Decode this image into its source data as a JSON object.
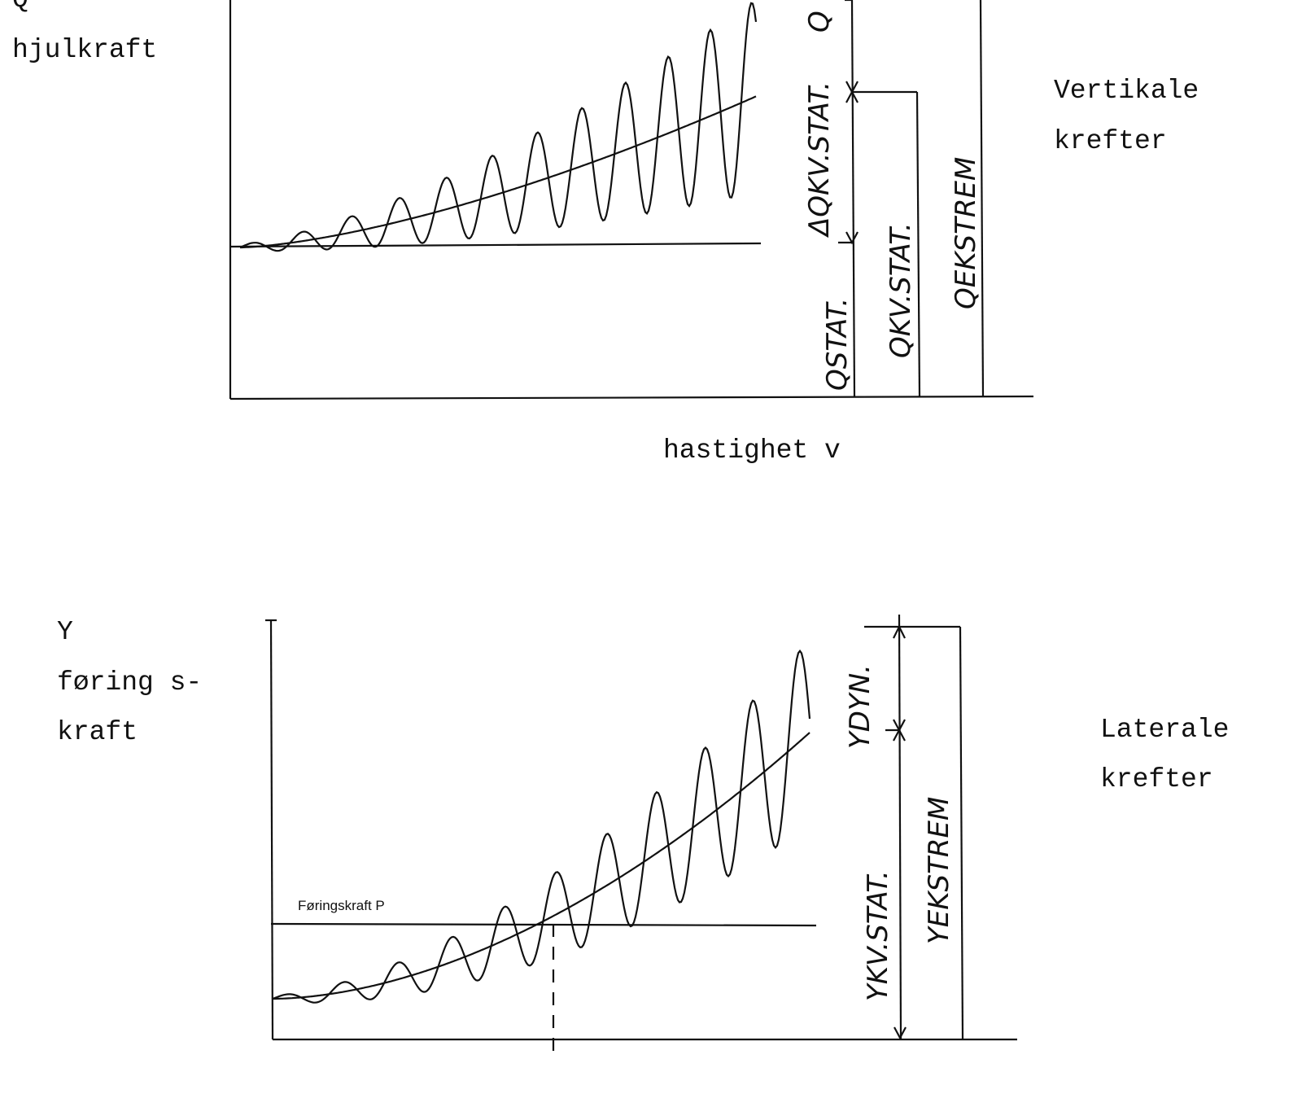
{
  "top_diagram": {
    "axis_symbol": "Q",
    "axis_label": "hjulkraft",
    "x_axis_label": "hastighet v",
    "side_label": [
      "Vertikale",
      "krefter"
    ],
    "dimension_labels": {
      "top": "Q",
      "delta": "ΔQKV.STAT.",
      "static": "QSTAT.",
      "quasi_static": "QKV.STAT.",
      "extreme": "QEKSTREM"
    }
  },
  "bottom_diagram": {
    "axis_symbol": "Y",
    "axis_label": [
      "føring s-",
      "kraft"
    ],
    "side_label": [
      "Laterale",
      "krefter"
    ],
    "reference_line_label": "Føringskraft P",
    "dimension_labels": {
      "dynamic": "YDYN.",
      "quasi_static": "YKV.STAT.",
      "extreme": "YEKSTREM"
    }
  }
}
